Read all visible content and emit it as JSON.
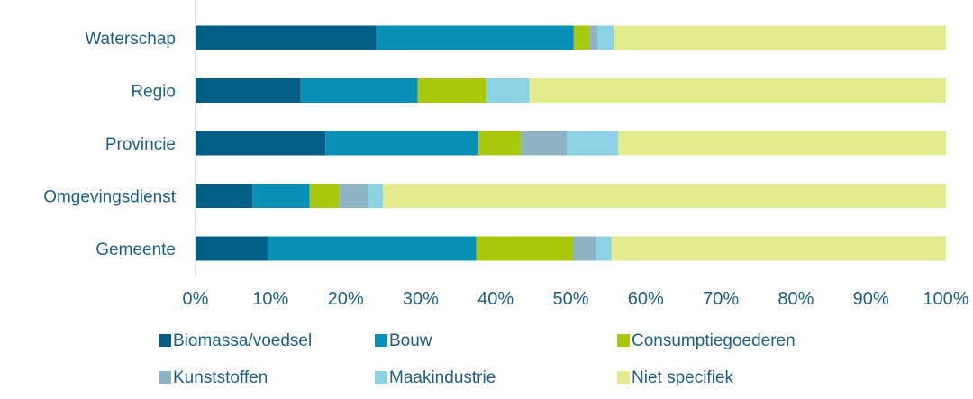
{
  "chart_data": {
    "type": "bar",
    "orientation": "horizontal",
    "stacked": "percent",
    "categories": [
      "Waterschap",
      "Regio",
      "Provincie",
      "Omgevingsdienst",
      "Gemeente"
    ],
    "series": [
      {
        "name": "Biomassa/voedsel",
        "color": "#035e86",
        "values": [
          24.1,
          14.0,
          17.3,
          7.6,
          9.6
        ]
      },
      {
        "name": "Bouw",
        "color": "#0a90b6",
        "values": [
          26.3,
          15.6,
          20.4,
          7.6,
          27.8
        ]
      },
      {
        "name": "Consumptiegoederen",
        "color": "#a9c80b",
        "values": [
          2.1,
          9.2,
          5.6,
          3.9,
          12.9
        ]
      },
      {
        "name": "Kunststoffen",
        "color": "#8eb4c4",
        "values": [
          1.1,
          0.0,
          6.2,
          3.9,
          3.0
        ]
      },
      {
        "name": "Maakindustrie",
        "color": "#8dd2e2",
        "values": [
          2.1,
          5.7,
          6.8,
          2.0,
          2.1
        ]
      },
      {
        "name": "Niet specifiek",
        "color": "#e2ec8f",
        "values": [
          44.3,
          55.5,
          43.7,
          75.0,
          44.6
        ]
      }
    ],
    "xlim": [
      0,
      100
    ],
    "x_ticks": [
      "0%",
      "10%",
      "20%",
      "30%",
      "40%",
      "50%",
      "60%",
      "70%",
      "80%",
      "90%",
      "100%"
    ],
    "grid": false,
    "legend_position": "bottom"
  }
}
